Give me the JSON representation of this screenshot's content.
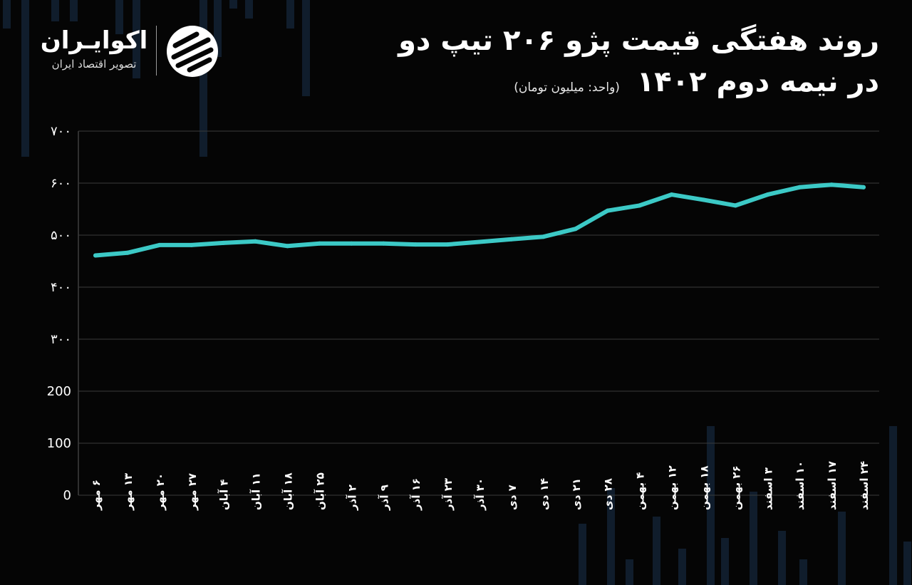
{
  "header": {
    "title_line1": "روند هفتگی قیمت پژو ۲۰۶ تیپ دو",
    "title_line2": "در نیمه دوم ۱۴۰۲",
    "unit": "(واحد: میلیون تومان)"
  },
  "logo": {
    "brand": "اکوایـران",
    "tagline": "تصویر اقتصاد ایران"
  },
  "colors": {
    "background": "#050505",
    "line": "#3cc9c6",
    "grid": "#3a3a3a"
  },
  "chart_data": {
    "type": "line",
    "title": "روند هفتگی قیمت پژو ۲۰۶ تیپ دو در نیمه دوم ۱۴۰۲",
    "xlabel": "",
    "ylabel": "",
    "ylim": [
      0,
      700
    ],
    "yticks": [
      0,
      100,
      200,
      300,
      400,
      500,
      600,
      700
    ],
    "ytick_labels": [
      "0",
      "100",
      "200",
      "۳۰۰",
      "۴۰۰",
      "۵۰۰",
      "۶۰۰",
      "۷۰۰"
    ],
    "grid": true,
    "categories": [
      "۶ مهر",
      "۱۳ مهر",
      "۲۰ مهر",
      "۲۷ مهر",
      "۴ آبان",
      "۱۱ آبان",
      "۱۸ آبان",
      "۲۵ آبان",
      "۲ آذر",
      "۹ آذر",
      "۱۶ آذر",
      "۲۳ آذر",
      "۳۰ آذر",
      "۷ دی",
      "۱۴ دی",
      "۲۱ دی",
      "۲۸ دی",
      "۴ بهمن",
      "۱۲ بهمن",
      "۱۸ بهمن",
      "۲۶ بهمن",
      "۳ اسفند",
      "۱۰ اسفند",
      "۱۷ اسفند",
      "۲۴ اسفند"
    ],
    "series": [
      {
        "name": "",
        "values": [
          461,
          466,
          481,
          481,
          485,
          488,
          479,
          484,
          484,
          484,
          482,
          482,
          487,
          492,
          497,
          512,
          547,
          557,
          578,
          568,
          557,
          578,
          592,
          597,
          592
        ]
      }
    ]
  }
}
